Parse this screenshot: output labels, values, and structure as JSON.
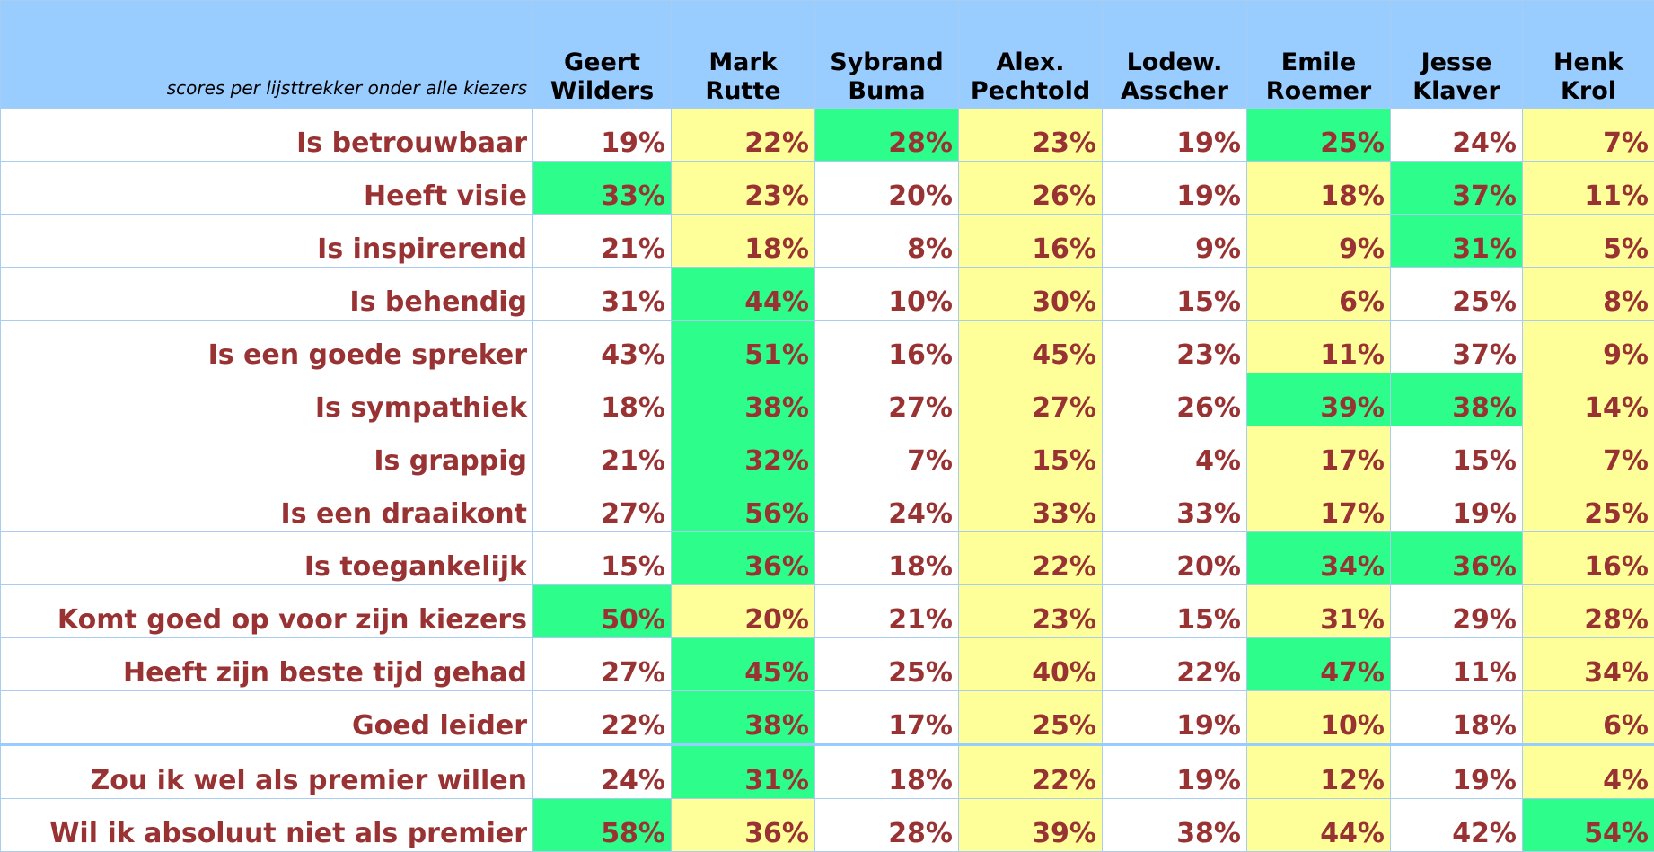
{
  "header": {
    "caption": "scores per lijsttrekker onder alle kiezers"
  },
  "columns": [
    [
      "Geert",
      "Wilders"
    ],
    [
      "Mark",
      "Rutte"
    ],
    [
      "Sybrand",
      "Buma"
    ],
    [
      "Alex.",
      "Pechtold"
    ],
    [
      "Lodew.",
      "Asscher"
    ],
    [
      "Emile",
      "Roemer"
    ],
    [
      "Jesse",
      "Klaver"
    ],
    [
      "Henk",
      "Krol"
    ]
  ],
  "rows": [
    {
      "label": "Is betrouwbaar",
      "values": [
        "19%",
        "22%",
        "28%",
        "23%",
        "19%",
        "25%",
        "24%",
        "7%"
      ],
      "fills": [
        "#ffffff",
        "#ffff99",
        "#2dfd8a",
        "#ffff99",
        "#ffffff",
        "#2dfd8a",
        "#ffffff",
        "#ffff99"
      ]
    },
    {
      "label": "Heeft visie",
      "values": [
        "33%",
        "23%",
        "20%",
        "26%",
        "19%",
        "18%",
        "37%",
        "11%"
      ],
      "fills": [
        "#2dfd8a",
        "#ffff99",
        "#ffffff",
        "#ffff99",
        "#ffffff",
        "#ffff99",
        "#2dfd8a",
        "#ffff99"
      ]
    },
    {
      "label": "Is inspirerend",
      "values": [
        "21%",
        "18%",
        "8%",
        "16%",
        "9%",
        "9%",
        "31%",
        "5%"
      ],
      "fills": [
        "#ffffff",
        "#ffff99",
        "#ffffff",
        "#ffff99",
        "#ffffff",
        "#ffff99",
        "#2dfd8a",
        "#ffff99"
      ]
    },
    {
      "label": "Is behendig",
      "values": [
        "31%",
        "44%",
        "10%",
        "30%",
        "15%",
        "6%",
        "25%",
        "8%"
      ],
      "fills": [
        "#ffffff",
        "#2dfd8a",
        "#ffffff",
        "#ffff99",
        "#ffffff",
        "#ffff99",
        "#ffffff",
        "#ffff99"
      ]
    },
    {
      "label": "Is een goede spreker",
      "values": [
        "43%",
        "51%",
        "16%",
        "45%",
        "23%",
        "11%",
        "37%",
        "9%"
      ],
      "fills": [
        "#ffffff",
        "#2dfd8a",
        "#ffffff",
        "#ffff99",
        "#ffffff",
        "#ffff99",
        "#ffffff",
        "#ffff99"
      ]
    },
    {
      "label": "Is sympathiek",
      "values": [
        "18%",
        "38%",
        "27%",
        "27%",
        "26%",
        "39%",
        "38%",
        "14%"
      ],
      "fills": [
        "#ffffff",
        "#2dfd8a",
        "#ffffff",
        "#ffff99",
        "#ffffff",
        "#2dfd8a",
        "#2dfd8a",
        "#ffff99"
      ]
    },
    {
      "label": "Is grappig",
      "values": [
        "21%",
        "32%",
        "7%",
        "15%",
        "4%",
        "17%",
        "15%",
        "7%"
      ],
      "fills": [
        "#ffffff",
        "#2dfd8a",
        "#ffffff",
        "#ffff99",
        "#ffffff",
        "#ffff99",
        "#ffffff",
        "#ffff99"
      ]
    },
    {
      "label": "Is een draaikont",
      "values": [
        "27%",
        "56%",
        "24%",
        "33%",
        "33%",
        "17%",
        "19%",
        "25%"
      ],
      "fills": [
        "#ffffff",
        "#2dfd8a",
        "#ffffff",
        "#ffff99",
        "#ffffff",
        "#ffff99",
        "#ffffff",
        "#ffff99"
      ]
    },
    {
      "label": "Is toegankelijk",
      "values": [
        "15%",
        "36%",
        "18%",
        "22%",
        "20%",
        "34%",
        "36%",
        "16%"
      ],
      "fills": [
        "#ffffff",
        "#2dfd8a",
        "#ffffff",
        "#ffff99",
        "#ffffff",
        "#2dfd8a",
        "#2dfd8a",
        "#ffff99"
      ]
    },
    {
      "label": "Komt goed op voor zijn kiezers",
      "values": [
        "50%",
        "20%",
        "21%",
        "23%",
        "15%",
        "31%",
        "29%",
        "28%"
      ],
      "fills": [
        "#2dfd8a",
        "#ffff99",
        "#ffffff",
        "#ffff99",
        "#ffffff",
        "#ffff99",
        "#ffffff",
        "#ffff99"
      ]
    },
    {
      "label": "Heeft zijn beste tijd gehad",
      "values": [
        "27%",
        "45%",
        "25%",
        "40%",
        "22%",
        "47%",
        "11%",
        "34%"
      ],
      "fills": [
        "#ffffff",
        "#2dfd8a",
        "#ffffff",
        "#ffff99",
        "#ffffff",
        "#2dfd8a",
        "#ffffff",
        "#ffff99"
      ]
    },
    {
      "label": "Goed leider",
      "values": [
        "22%",
        "38%",
        "17%",
        "25%",
        "19%",
        "10%",
        "18%",
        "6%"
      ],
      "fills": [
        "#ffffff",
        "#2dfd8a",
        "#ffffff",
        "#ffff99",
        "#ffffff",
        "#ffff99",
        "#ffffff",
        "#ffff99"
      ]
    },
    {
      "label": "Zou ik wel als premier willen",
      "values": [
        "24%",
        "31%",
        "18%",
        "22%",
        "19%",
        "12%",
        "19%",
        "4%"
      ],
      "fills": [
        "#ffffff",
        "#2dfd8a",
        "#ffffff",
        "#ffff99",
        "#ffffff",
        "#ffff99",
        "#ffffff",
        "#ffff99"
      ]
    },
    {
      "label": "Wil ik absoluut niet als premier",
      "values": [
        "58%",
        "36%",
        "28%",
        "39%",
        "38%",
        "44%",
        "42%",
        "54%"
      ],
      "fills": [
        "#2dfd8a",
        "#ffff99",
        "#ffffff",
        "#ffff99",
        "#ffffff",
        "#ffff99",
        "#ffffff",
        "#2dfd8a"
      ]
    }
  ]
}
